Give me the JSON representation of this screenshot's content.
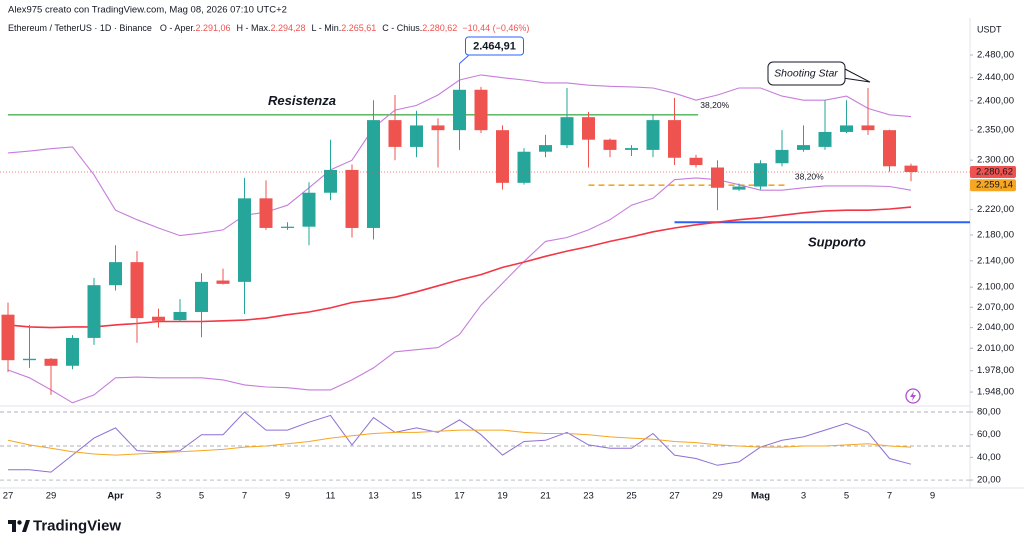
{
  "credit": "Alex975 creato con TradingView.com, Mag 08, 2026 07:10 UTC+2",
  "logo": "TradingView",
  "chart_data": {
    "type": "candlestick",
    "title": "Ethereum / TetherUS · 1D · Binance",
    "ohlc_legend": [
      {
        "label": "O - Aper.",
        "value": "2.291,06"
      },
      {
        "label": "H - Max.",
        "value": "2.294,28"
      },
      {
        "label": "L - Min.",
        "value": "2.265,61"
      },
      {
        "label": "C - Chius.",
        "value": "2.280,62"
      }
    ],
    "change": "−10,44 (−0,46%)",
    "y_unit": "USDT",
    "categories": [
      "27",
      null,
      "29",
      null,
      null,
      "Apr",
      null,
      "3",
      null,
      "5",
      null,
      "7",
      null,
      "9",
      null,
      "11",
      null,
      "13",
      null,
      "15",
      null,
      "17",
      null,
      "19",
      null,
      "21",
      null,
      "23",
      null,
      "25",
      null,
      "27",
      null,
      "29",
      null,
      "Mag",
      null,
      "3",
      null,
      "5",
      null,
      "7",
      null,
      "9"
    ],
    "open": [
      2059,
      1993,
      1995,
      1985,
      2025,
      2103,
      2138,
      2056,
      2051,
      2063,
      2110,
      2108,
      2238,
      2191,
      2193,
      2247,
      2284,
      2191,
      2367,
      2322,
      2358,
      2350,
      2419,
      2350,
      2263,
      2314,
      2325,
      2372,
      2334,
      2317,
      2317,
      2367,
      2304,
      2288,
      2252,
      2257,
      2295,
      2317,
      2322,
      2347,
      2358,
      2350,
      2291.06,
      null
    ],
    "high": [
      2077,
      2044,
      1996,
      2029,
      2114,
      2164,
      2155,
      2068,
      2082,
      2121,
      2128,
      2271,
      2267,
      2200,
      2264,
      2334,
      2293,
      2401,
      2410,
      2383,
      2370,
      2464.91,
      2424,
      2358,
      2320,
      2342,
      2422,
      2381,
      2336,
      2325,
      2376,
      2405,
      2309,
      2300,
      2262,
      2300,
      2350,
      2358,
      2401,
      2401,
      2422,
      2351,
      2294.28,
      null
    ],
    "low": [
      1976,
      1982,
      1944,
      1980,
      2015,
      2095,
      2018,
      2040,
      2049,
      2026,
      2104,
      2060,
      2188,
      2188,
      2164,
      2235,
      2176,
      2173,
      2300,
      2305,
      2288,
      2317,
      2345,
      2252,
      2260,
      2305,
      2320,
      2288,
      2305,
      2307,
      2305,
      2292,
      2288,
      2219,
      2250,
      2252,
      2290,
      2314,
      2317,
      2345,
      2342,
      2281,
      2265.61,
      null
    ],
    "close": [
      1993,
      1995,
      1985,
      2025,
      2103,
      2138,
      2054,
      2050,
      2063,
      2108,
      2105,
      2238,
      2191,
      2193,
      2247,
      2284,
      2191,
      2367,
      2322,
      2358,
      2350,
      2419,
      2350,
      2263,
      2314,
      2325,
      2372,
      2334,
      2317,
      2320,
      2367,
      2304,
      2292,
      2255,
      2257,
      2295,
      2317,
      2325,
      2347,
      2358,
      2350,
      2290,
      2280.62,
      null
    ],
    "up_color": "#26a69a",
    "down_color": "#ef5350",
    "log_scale": true,
    "ylim": [
      1930,
      2543
    ],
    "yticks": [
      {
        "value": 2480,
        "label": "2.480,00"
      },
      {
        "value": 2440,
        "label": "2.440,00"
      },
      {
        "value": 2400,
        "label": "2.400,00"
      },
      {
        "value": 2350,
        "label": "2.350,00"
      },
      {
        "value": 2300,
        "label": "2.300,00"
      },
      {
        "value": 2220,
        "label": "2.220,00"
      },
      {
        "value": 2180,
        "label": "2.180,00"
      },
      {
        "value": 2140,
        "label": "2.140,00"
      },
      {
        "value": 2100,
        "label": "2.100,00"
      },
      {
        "value": 2070,
        "label": "2.070,00"
      },
      {
        "value": 2040,
        "label": "2.040,00"
      },
      {
        "value": 2010,
        "label": "2.010,00"
      },
      {
        "value": 1978,
        "label": "1.978,00"
      },
      {
        "value": 1948,
        "label": "1.948,00"
      }
    ],
    "lines": [
      {
        "color": "#c77ddb",
        "values": [
          2312,
          2315,
          2319,
          2322,
          2276,
          2219,
          2204,
          2191,
          2179,
          2183,
          2188,
          2211,
          2216,
          2227,
          2255,
          2284,
          2300,
          2354,
          2384,
          2392,
          2410,
          2436,
          2445,
          2440,
          2436,
          2431,
          2431,
          2427,
          2425,
          2424,
          2422,
          2413,
          2401,
          2410,
          2422,
          2422,
          2408,
          2401,
          2401,
          2408,
          2387,
          2376,
          2373,
          null
        ]
      },
      {
        "color": "#c77ddb",
        "values": [
          1979,
          1968,
          1951,
          1933,
          1944,
          1968,
          1969,
          1968,
          1968,
          1968,
          1965,
          1958,
          1955,
          1954,
          1951,
          1951,
          1965,
          1982,
          2005,
          2008,
          2011,
          2030,
          2073,
          2106,
          2139,
          2170,
          2176,
          2188,
          2204,
          2227,
          2238,
          2268,
          2271,
          2268,
          2260,
          2251,
          2251,
          2255,
          2258,
          2258,
          2258,
          2257,
          2251,
          null
        ]
      },
      {
        "color": "#f23645",
        "values": [
          2044,
          2041,
          2040,
          2041,
          2041,
          2044,
          2046,
          2049,
          2049,
          2049,
          2050,
          2051,
          2054,
          2059,
          2063,
          2069,
          2077,
          2081,
          2085,
          2093,
          2102,
          2111,
          2119,
          2130,
          2138,
          2147,
          2155,
          2162,
          2170,
          2177,
          2185,
          2191,
          2196,
          2200,
          2204,
          2207,
          2211,
          2215,
          2218,
          2219,
          2219,
          2221,
          2224,
          null
        ]
      }
    ],
    "resistance": {
      "value": 2376,
      "color": "#4caf50",
      "label": "Resistenza",
      "fib_label": "38,20%"
    },
    "support": {
      "value": 2200,
      "color": "#2962ff",
      "label": "Supporto"
    },
    "fib_level": {
      "value": 2259.14,
      "color": "#f5a623",
      "label": "2.259,14",
      "fib_label": "38,20%"
    },
    "last_price_label": "2.280,62",
    "high_callout": {
      "value": 2464.91,
      "label": "2.464,91"
    },
    "shooting_star": {
      "value": 2422,
      "label": "Shooting Star"
    }
  },
  "rsi": {
    "ylim": [
      13,
      83.5
    ],
    "yticks": [
      {
        "value": 80,
        "label": "80,00"
      },
      {
        "value": 60,
        "label": "60,00"
      },
      {
        "value": 40,
        "label": "40,00"
      },
      {
        "value": 20,
        "label": "20,00"
      }
    ],
    "bands": [
      80,
      50,
      20
    ],
    "series": [
      {
        "color": "#8e6fd6",
        "values": [
          29,
          29,
          27,
          42,
          57,
          66,
          46,
          45,
          46,
          60,
          60,
          80,
          64,
          64,
          71,
          77,
          51,
          75,
          62,
          66,
          62,
          73,
          60,
          42,
          54,
          55,
          62,
          51,
          48,
          48,
          61,
          42,
          39,
          33,
          36,
          49,
          55,
          58,
          64,
          70,
          62,
          39,
          34,
          null
        ]
      },
      {
        "color": "#f5a623",
        "values": [
          55,
          51,
          48,
          45,
          43,
          42,
          43,
          44,
          45,
          46,
          47,
          49,
          50,
          52,
          54,
          57,
          59,
          61,
          62,
          62,
          63,
          64,
          64,
          64,
          62,
          61,
          61,
          60,
          58,
          57,
          56,
          54,
          53,
          51,
          50,
          49,
          49,
          50,
          50,
          51,
          52,
          50,
          49,
          null
        ]
      }
    ]
  }
}
